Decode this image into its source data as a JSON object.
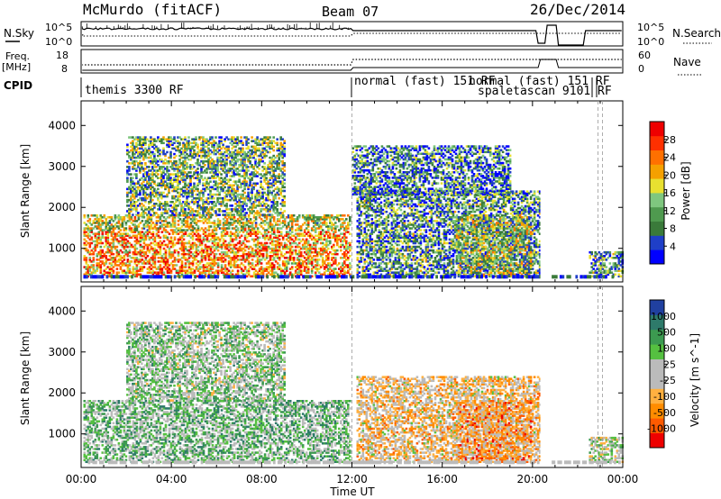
{
  "header": {
    "station": "McMurdo (fitACF)",
    "beam": "Beam 07",
    "date": "26/Dec/2014"
  },
  "top_panels": {
    "nsky_label": "N.Sky",
    "nsearch_label": "N.Search",
    "nsky_ticks": [
      "10^5",
      "10^0"
    ],
    "nsearch_ticks": [
      "10^5",
      "10^0"
    ],
    "freq_label_line1": "Freq.",
    "freq_label_line2": "[MHz]",
    "freq_ticks": [
      "18",
      "8"
    ],
    "nave_label": "Nave",
    "nave_ticks": [
      "60",
      "0"
    ],
    "cpid_label": "CPID",
    "cpid_entries": [
      "themis 3300 RF",
      "normal (fast) 151 RF",
      "normal (fast) 151 RF",
      "spaletascan 9101 RF"
    ]
  },
  "chart_data": [
    {
      "type": "heatmap",
      "title": "",
      "xlabel": "Time UT",
      "ylabel": "Slant Range [km]",
      "x_ticks": [
        "00:00",
        "04:00",
        "08:00",
        "12:00",
        "16:00",
        "20:00",
        "00:00"
      ],
      "xlim_hours": [
        0,
        24
      ],
      "y_ticks": [
        "1000",
        "2000",
        "3000",
        "4000"
      ],
      "ylim": [
        180,
        4600
      ],
      "colorbar": {
        "label": "Power [dB]",
        "ticks": [
          "28",
          "24",
          "20",
          "16",
          "12",
          "8",
          "4"
        ],
        "range": [
          0,
          32
        ],
        "colors": [
          "#0000ff",
          "#1f3fc8",
          "#3a7a3a",
          "#4f9a4f",
          "#7fc77f",
          "#e8e030",
          "#f5a000",
          "#ff7000",
          "#ff3000",
          "#ee0000"
        ]
      },
      "echo_regions": [
        {
          "t0": 0.1,
          "t1": 11.9,
          "r0": 300,
          "r1": 1800,
          "mean_power": 16
        },
        {
          "t0": 2.0,
          "t1": 9.0,
          "r0": 1800,
          "r1": 3700,
          "mean_power": 12
        },
        {
          "t0": 12.2,
          "t1": 20.3,
          "r0": 300,
          "r1": 2400,
          "mean_power": 10
        },
        {
          "t0": 12.0,
          "t1": 19.0,
          "r0": 2300,
          "r1": 3500,
          "mean_power": 8
        },
        {
          "t0": 16.6,
          "t1": 19.9,
          "r0": 300,
          "r1": 1800,
          "mean_power": 14
        },
        {
          "t0": 22.5,
          "t1": 24.0,
          "r0": 300,
          "r1": 900,
          "mean_power": 10
        }
      ]
    },
    {
      "type": "heatmap",
      "title": "",
      "xlabel": "Time UT",
      "ylabel": "Slant Range [km]",
      "x_ticks": [
        "00:00",
        "04:00",
        "08:00",
        "12:00",
        "16:00",
        "20:00",
        "00:00"
      ],
      "xlim_hours": [
        0,
        24
      ],
      "y_ticks": [
        "1000",
        "2000",
        "3000",
        "4000"
      ],
      "ylim": [
        180,
        4600
      ],
      "colorbar": {
        "label": "Velocity [m s^-1]",
        "ticks": [
          "1000",
          "500",
          "100",
          "25",
          "-25",
          "-100",
          "-500",
          "-1000"
        ],
        "range": [
          -1000,
          1000
        ],
        "colors": [
          "#ee0000",
          "#ff5a00",
          "#ff8c00",
          "#ffb040",
          "#bbbbbb",
          "#bbbbbb",
          "#55c040",
          "#3c9a50",
          "#2e7a6a",
          "#2040a0"
        ]
      },
      "echo_regions": [
        {
          "t0": 0.1,
          "t1": 11.9,
          "r0": 300,
          "r1": 1800,
          "mean_velocity": 300
        },
        {
          "t0": 2.0,
          "t1": 9.0,
          "r0": 1800,
          "r1": 3700,
          "mean_velocity": 200
        },
        {
          "t0": 12.2,
          "t1": 20.3,
          "r0": 300,
          "r1": 2400,
          "mean_velocity": -200
        },
        {
          "t0": 16.6,
          "t1": 19.9,
          "r0": 300,
          "r1": 1800,
          "mean_velocity": -400
        },
        {
          "t0": 22.5,
          "t1": 24.0,
          "r0": 300,
          "r1": 900,
          "mean_velocity": 50
        }
      ]
    }
  ]
}
